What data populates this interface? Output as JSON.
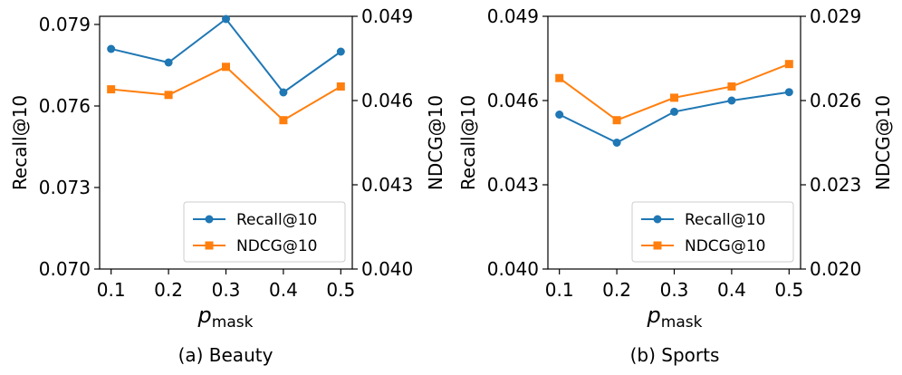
{
  "chart_data": [
    {
      "type": "line",
      "caption": "(a) Beauty",
      "x": [
        0.1,
        0.2,
        0.3,
        0.4,
        0.5
      ],
      "x_tick_labels": [
        "0.1",
        "0.2",
        "0.3",
        "0.4",
        "0.5"
      ],
      "xlabel_main": "p",
      "xlabel_sub": "mask",
      "xlim": [
        0.08,
        0.52
      ],
      "left_axis": {
        "label": "Recall@10",
        "ylim": [
          0.07,
          0.0793
        ],
        "ticks": [
          0.07,
          0.073,
          0.076,
          0.079
        ],
        "tick_labels": [
          "0.070",
          "0.073",
          "0.076",
          "0.079"
        ]
      },
      "right_axis": {
        "label": "NDCG@10",
        "ylim": [
          0.04,
          0.049
        ],
        "ticks": [
          0.04,
          0.043,
          0.046,
          0.049
        ],
        "tick_labels": [
          "0.040",
          "0.043",
          "0.046",
          "0.049"
        ]
      },
      "series": [
        {
          "name": "Recall@10",
          "axis": "left",
          "color": "#1f77b4",
          "marker": "circle",
          "values": [
            0.0781,
            0.0776,
            0.0792,
            0.0765,
            0.078
          ]
        },
        {
          "name": "NDCG@10",
          "axis": "right",
          "color": "#ff7f0e",
          "marker": "square",
          "values": [
            0.0464,
            0.0462,
            0.0472,
            0.0453,
            0.0465
          ]
        }
      ],
      "legend_position": "lower-right"
    },
    {
      "type": "line",
      "caption": "(b) Sports",
      "x": [
        0.1,
        0.2,
        0.3,
        0.4,
        0.5
      ],
      "x_tick_labels": [
        "0.1",
        "0.2",
        "0.3",
        "0.4",
        "0.5"
      ],
      "xlabel_main": "p",
      "xlabel_sub": "mask",
      "xlim": [
        0.08,
        0.52
      ],
      "left_axis": {
        "label": "Recall@10",
        "ylim": [
          0.04,
          0.049
        ],
        "ticks": [
          0.04,
          0.043,
          0.046,
          0.049
        ],
        "tick_labels": [
          "0.040",
          "0.043",
          "0.046",
          "0.049"
        ]
      },
      "right_axis": {
        "label": "NDCG@10",
        "ylim": [
          0.02,
          0.029
        ],
        "ticks": [
          0.02,
          0.023,
          0.026,
          0.029
        ],
        "tick_labels": [
          "0.020",
          "0.023",
          "0.026",
          "0.029"
        ]
      },
      "series": [
        {
          "name": "Recall@10",
          "axis": "left",
          "color": "#1f77b4",
          "marker": "circle",
          "values": [
            0.0455,
            0.0445,
            0.0456,
            0.046,
            0.0463
          ]
        },
        {
          "name": "NDCG@10",
          "axis": "right",
          "color": "#ff7f0e",
          "marker": "square",
          "values": [
            0.0268,
            0.0253,
            0.0261,
            0.0265,
            0.0273
          ]
        }
      ],
      "legend_position": "lower-right"
    }
  ]
}
